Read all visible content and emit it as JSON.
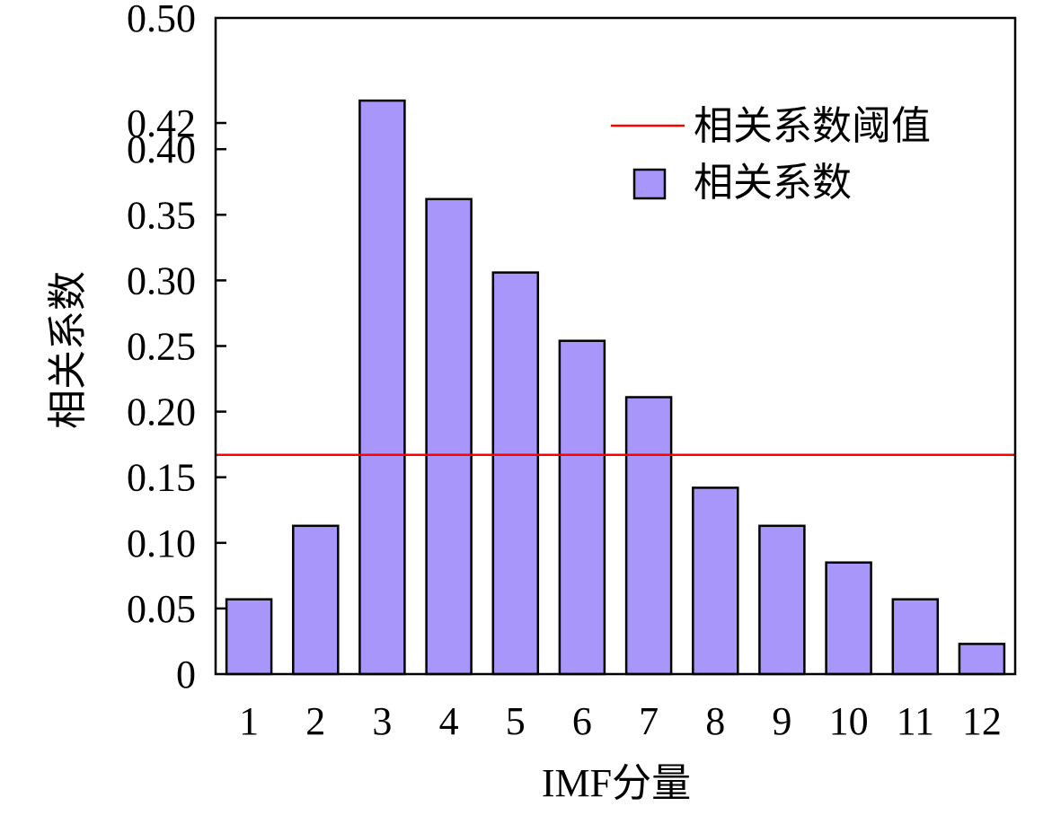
{
  "chart_data": {
    "type": "bar",
    "categories": [
      "1",
      "2",
      "3",
      "4",
      "5",
      "6",
      "7",
      "8",
      "9",
      "10",
      "11",
      "12"
    ],
    "series": [
      {
        "name": "相关系数",
        "values": [
          0.057,
          0.113,
          0.437,
          0.362,
          0.306,
          0.254,
          0.211,
          0.142,
          0.113,
          0.085,
          0.057,
          0.023
        ]
      }
    ],
    "threshold": {
      "name": "相关系数阈值",
      "value": 0.167
    },
    "xlabel": "IMF分量",
    "ylabel": "相关系数",
    "yticks": [
      0,
      0.05,
      0.1,
      0.15,
      0.2,
      0.25,
      0.3,
      0.35,
      0.4,
      0.42,
      0.5
    ],
    "ytick_labels": [
      "0",
      "0.05",
      "0.10",
      "0.15",
      "0.20",
      "0.25",
      "0.30",
      "0.35",
      "0.40",
      "0.42",
      "0.50"
    ],
    "ylim": [
      0,
      0.5
    ],
    "grid": false,
    "legend_position": "top-right",
    "colors": {
      "bar_fill": "#a896fa",
      "bar_stroke": "#000000",
      "threshold_line": "#ff0000"
    }
  }
}
